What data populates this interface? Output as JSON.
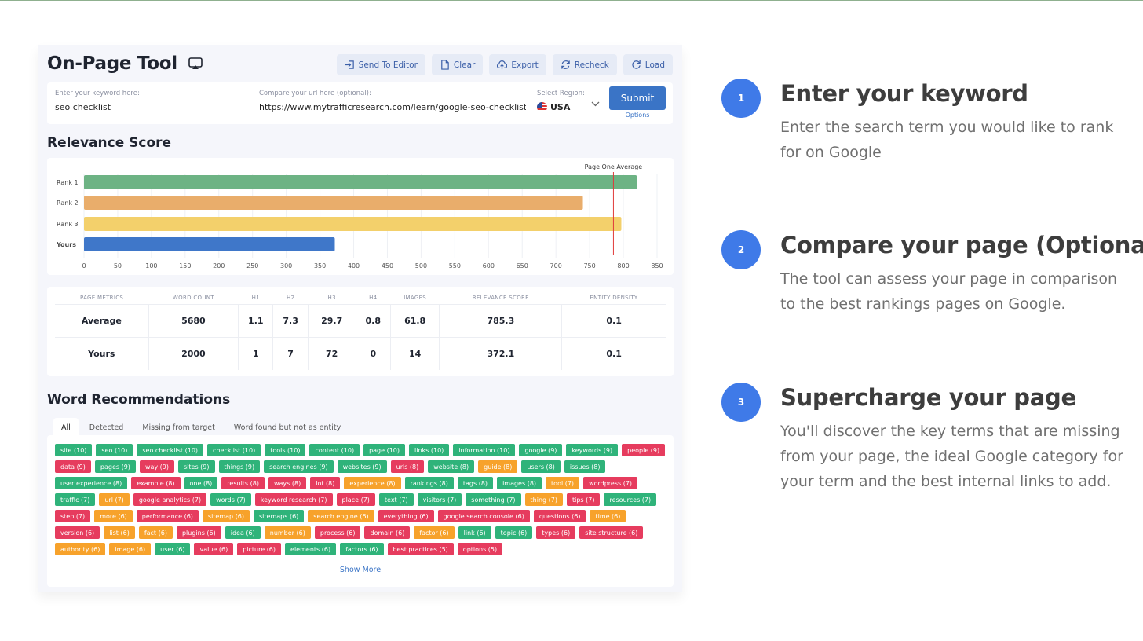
{
  "tool": {
    "title": "On-Page Tool",
    "actions": [
      {
        "label": "Send To Editor",
        "icon": "send-to-editor-icon"
      },
      {
        "label": "Clear",
        "icon": "document-icon"
      },
      {
        "label": "Export",
        "icon": "cloud-upload-icon"
      },
      {
        "label": "Recheck",
        "icon": "refresh-icon"
      },
      {
        "label": "Load",
        "icon": "reload-icon"
      }
    ],
    "keyword": {
      "label": "Enter your keyword here:",
      "value": "seo checklist"
    },
    "compare": {
      "label": "Compare your url here (optional):",
      "value": "https://www.mytrafficresearch.com/learn/google-seo-checklist/"
    },
    "region": {
      "label": "Select Region:",
      "value": "USA"
    },
    "submit_label": "Submit",
    "options_label": "Options"
  },
  "relevance": {
    "title": "Relevance Score",
    "chart_data": {
      "type": "bar",
      "orientation": "horizontal",
      "categories": [
        "Rank 1",
        "Rank 2",
        "Rank 3",
        "Yours"
      ],
      "values": [
        820,
        740,
        797,
        372
      ],
      "colors": [
        "#6db384",
        "#e9ad6b",
        "#f3d06b",
        "#3f77c9"
      ],
      "reference_line": {
        "label": "Page One Average",
        "value": 785.3,
        "color": "#e03a3a"
      },
      "xticks": [
        0,
        50,
        100,
        150,
        200,
        250,
        300,
        350,
        400,
        450,
        500,
        550,
        600,
        650,
        700,
        750,
        800,
        850
      ],
      "xlim": [
        0,
        850
      ],
      "grid": true
    }
  },
  "metrics": {
    "headers": [
      "PAGE METRICS",
      "WORD COUNT",
      "H1",
      "H2",
      "H3",
      "H4",
      "IMAGES",
      "RELEVANCE SCORE",
      "ENTITY DENSITY"
    ],
    "rows": [
      [
        "Average",
        "5680",
        "1.1",
        "7.3",
        "29.7",
        "0.8",
        "61.8",
        "785.3",
        "0.1"
      ],
      [
        "Yours",
        "2000",
        "1",
        "7",
        "72",
        "0",
        "14",
        "372.1",
        "0.1"
      ]
    ]
  },
  "words": {
    "title": "Word Recommendations",
    "tabs": [
      "All",
      "Detected",
      "Missing from target",
      "Word found but not as entity"
    ],
    "tags": [
      {
        "t": "site (10)",
        "c": "g"
      },
      {
        "t": "seo (10)",
        "c": "g"
      },
      {
        "t": "seo checklist (10)",
        "c": "g"
      },
      {
        "t": "checklist (10)",
        "c": "g"
      },
      {
        "t": "tools (10)",
        "c": "g"
      },
      {
        "t": "content (10)",
        "c": "g"
      },
      {
        "t": "page (10)",
        "c": "g"
      },
      {
        "t": "links (10)",
        "c": "g"
      },
      {
        "t": "information (10)",
        "c": "g"
      },
      {
        "t": "google (9)",
        "c": "g"
      },
      {
        "t": "keywords (9)",
        "c": "g"
      },
      {
        "t": "people (9)",
        "c": "r"
      },
      {
        "t": "data (9)",
        "c": "r"
      },
      {
        "t": "pages (9)",
        "c": "g"
      },
      {
        "t": "way (9)",
        "c": "r"
      },
      {
        "t": "sites (9)",
        "c": "g"
      },
      {
        "t": "things (9)",
        "c": "g"
      },
      {
        "t": "search engines (9)",
        "c": "g"
      },
      {
        "t": "websites (9)",
        "c": "g"
      },
      {
        "t": "urls (8)",
        "c": "r"
      },
      {
        "t": "website (8)",
        "c": "g"
      },
      {
        "t": "guide (8)",
        "c": "o"
      },
      {
        "t": "users (8)",
        "c": "g"
      },
      {
        "t": "issues (8)",
        "c": "g"
      },
      {
        "t": "user experience (8)",
        "c": "g"
      },
      {
        "t": "example (8)",
        "c": "r"
      },
      {
        "t": "one (8)",
        "c": "g"
      },
      {
        "t": "results (8)",
        "c": "r"
      },
      {
        "t": "ways (8)",
        "c": "r"
      },
      {
        "t": "lot (8)",
        "c": "r"
      },
      {
        "t": "experience (8)",
        "c": "o"
      },
      {
        "t": "rankings (8)",
        "c": "g"
      },
      {
        "t": "tags (8)",
        "c": "g"
      },
      {
        "t": "images (8)",
        "c": "g"
      },
      {
        "t": "tool (7)",
        "c": "o"
      },
      {
        "t": "wordpress (7)",
        "c": "r"
      },
      {
        "t": "traffic (7)",
        "c": "g"
      },
      {
        "t": "url (7)",
        "c": "o"
      },
      {
        "t": "google analytics (7)",
        "c": "r"
      },
      {
        "t": "words (7)",
        "c": "g"
      },
      {
        "t": "keyword research (7)",
        "c": "r"
      },
      {
        "t": "place (7)",
        "c": "r"
      },
      {
        "t": "text (7)",
        "c": "g"
      },
      {
        "t": "visitors (7)",
        "c": "g"
      },
      {
        "t": "something (7)",
        "c": "g"
      },
      {
        "t": "thing (7)",
        "c": "o"
      },
      {
        "t": "tips (7)",
        "c": "r"
      },
      {
        "t": "resources (7)",
        "c": "g"
      },
      {
        "t": "step (7)",
        "c": "r"
      },
      {
        "t": "more (6)",
        "c": "o"
      },
      {
        "t": "performance (6)",
        "c": "r"
      },
      {
        "t": "sitemap (6)",
        "c": "o"
      },
      {
        "t": "sitemaps (6)",
        "c": "g"
      },
      {
        "t": "search engine (6)",
        "c": "o"
      },
      {
        "t": "everything (6)",
        "c": "r"
      },
      {
        "t": "google search console (6)",
        "c": "r"
      },
      {
        "t": "questions (6)",
        "c": "r"
      },
      {
        "t": "time (6)",
        "c": "o"
      },
      {
        "t": "version (6)",
        "c": "r"
      },
      {
        "t": "list (6)",
        "c": "o"
      },
      {
        "t": "fact (6)",
        "c": "o"
      },
      {
        "t": "plugins (6)",
        "c": "r"
      },
      {
        "t": "idea (6)",
        "c": "g"
      },
      {
        "t": "number (6)",
        "c": "o"
      },
      {
        "t": "process (6)",
        "c": "r"
      },
      {
        "t": "domain (6)",
        "c": "r"
      },
      {
        "t": "factor (6)",
        "c": "o"
      },
      {
        "t": "link (6)",
        "c": "g"
      },
      {
        "t": "topic (6)",
        "c": "g"
      },
      {
        "t": "types (6)",
        "c": "r"
      },
      {
        "t": "site structure (6)",
        "c": "r"
      },
      {
        "t": "authority (6)",
        "c": "o"
      },
      {
        "t": "image (6)",
        "c": "o"
      },
      {
        "t": "user (6)",
        "c": "g"
      },
      {
        "t": "value (6)",
        "c": "r"
      },
      {
        "t": "picture (6)",
        "c": "r"
      },
      {
        "t": "elements (6)",
        "c": "g"
      },
      {
        "t": "factors (6)",
        "c": "g"
      },
      {
        "t": "best practices (5)",
        "c": "r"
      },
      {
        "t": "options (5)",
        "c": "r"
      }
    ],
    "show_more": "Show More"
  },
  "steps": [
    {
      "num": "1",
      "title": "Enter your keyword",
      "text": "Enter the search term you would like to rank for on Google"
    },
    {
      "num": "2",
      "title": "Compare your page (Optional)",
      "text": "The tool can assess your page in comparison to the best rankings pages on Google."
    },
    {
      "num": "3",
      "title": "Supercharge your page",
      "text": "You'll discover the key terms that are missing from your page, the ideal Google category for your term and the best internal links to add."
    }
  ]
}
